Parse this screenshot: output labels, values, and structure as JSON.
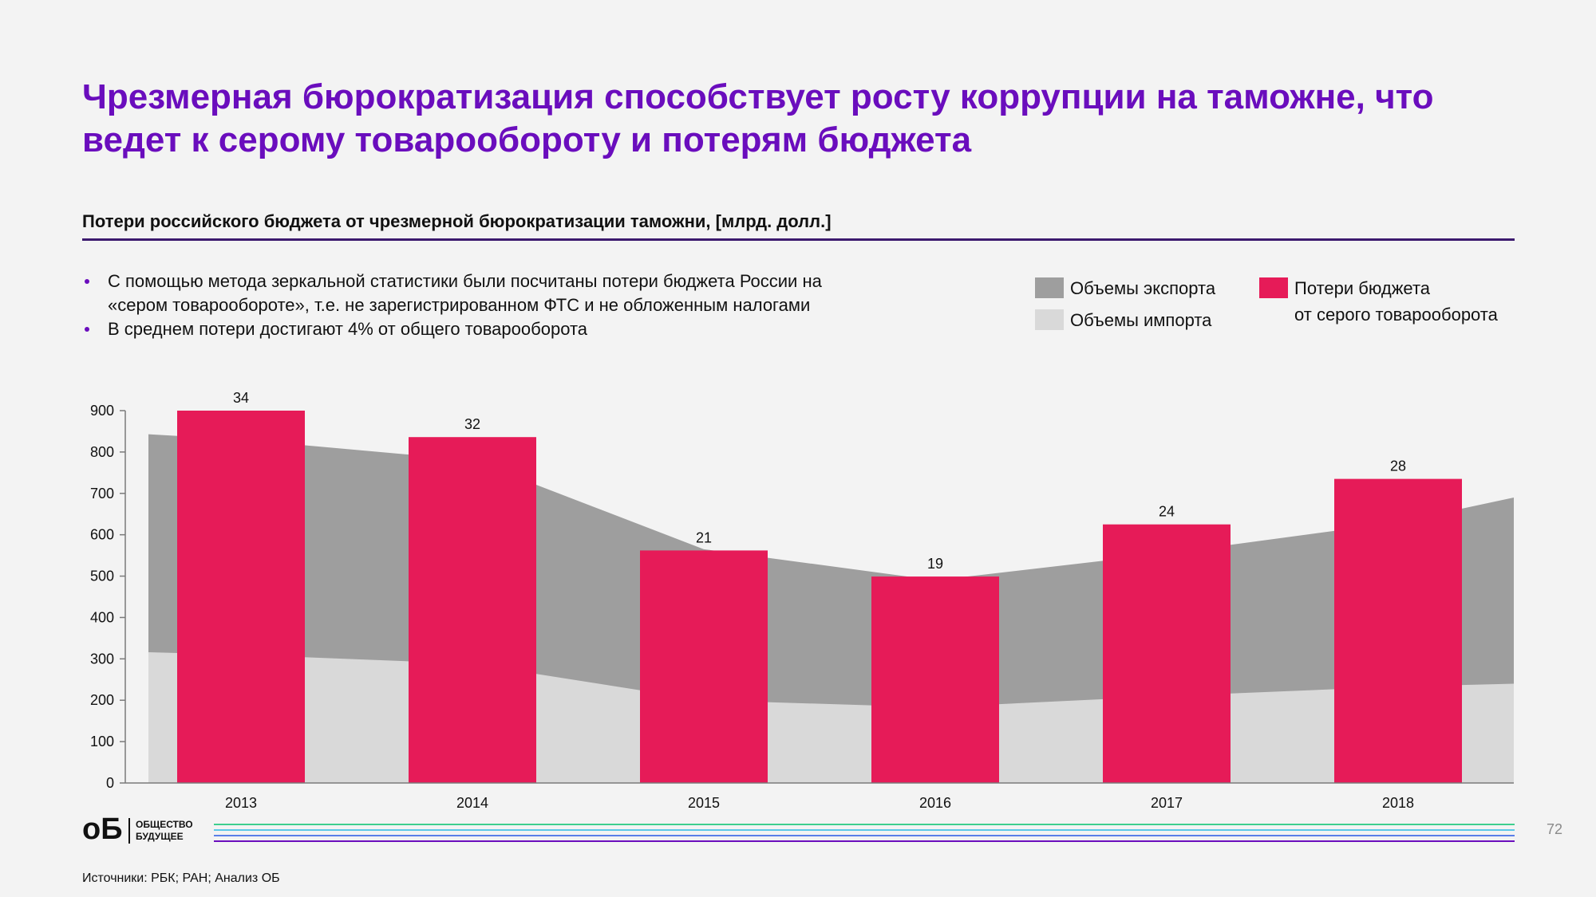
{
  "header": {
    "title_line1": "Чрезмерная бюрократизация способствует росту коррупции на таможне, что",
    "title_line2": "ведет к серому товарообороту и потерям бюджета"
  },
  "subtitle": "Потери российского бюджета от чрезмерной бюрократизации таможни, [млрд. долл.]",
  "bullets": [
    {
      "line1": "С помощью метода зеркальной статистики были посчитаны потери бюджета России на",
      "line2": "«сером товарообороте», т.е. не зарегистрированном ФТС и не обложенным налогами"
    },
    {
      "line1": "В среднем потери достигают 4% от общего товарооборота",
      "line2": ""
    }
  ],
  "legend": {
    "export": "Объемы экспорта",
    "import": "Объемы импорта",
    "losses_line1": "Потери бюджета",
    "losses_line2": "от серого товарооборота"
  },
  "colors": {
    "title": "#6a0dbd",
    "export": "#9e9e9e",
    "import": "#d9d9d9",
    "losses": "#e61b58",
    "footer_lines": [
      "#3ecf8e",
      "#5bc8e8",
      "#5b7fe8",
      "#6a0dbd"
    ]
  },
  "chart_data": {
    "type": "bar",
    "categories": [
      "2013",
      "2014",
      "2015",
      "2016",
      "2017",
      "2018"
    ],
    "ylim": [
      0,
      900
    ],
    "yticks": [
      0,
      100,
      200,
      300,
      400,
      500,
      600,
      700,
      800,
      900
    ],
    "grid": false,
    "series": [
      {
        "name": "Потери бюджета от серого товарооборота",
        "kind": "bar",
        "values": [
          34,
          32,
          21,
          19,
          24,
          28
        ],
        "bar_heights": [
          900,
          836,
          562,
          499,
          625,
          735
        ]
      },
      {
        "name": "Объемы экспорта",
        "kind": "area",
        "x": [
          2012.6,
          2013,
          2014,
          2015,
          2016,
          2017,
          2018,
          2018.5
        ],
        "values": [
          843,
          830,
          780,
          565,
          490,
          555,
          630,
          690
        ]
      },
      {
        "name": "Объемы импорта",
        "kind": "area",
        "x": [
          2012.6,
          2013,
          2014,
          2015,
          2016,
          2017,
          2018,
          2018.5
        ],
        "values": [
          316,
          310,
          288,
          200,
          183,
          210,
          233,
          240
        ]
      }
    ]
  },
  "footer": {
    "logo_mark": "оБ",
    "logo_line1": "ОБЩЕСТВО",
    "logo_line2": "БУДУЩЕЕ",
    "page_number": "72",
    "sources": "Источники: РБК; РАН; Анализ ОБ"
  }
}
